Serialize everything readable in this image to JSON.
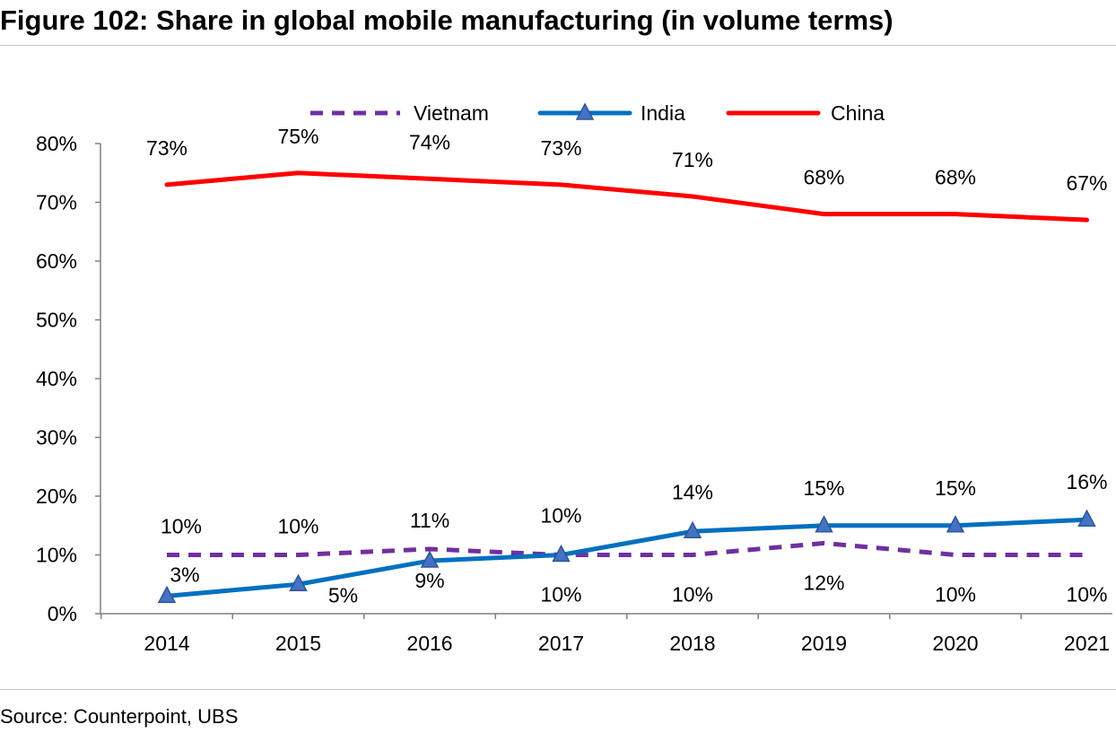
{
  "title": "Figure 102: Share in global mobile manufacturing (in volume terms)",
  "source": "Source: Counterpoint, UBS",
  "chart_data": {
    "type": "line",
    "categories": [
      "2014",
      "2015",
      "2016",
      "2017",
      "2018",
      "2019",
      "2020",
      "2021"
    ],
    "ylim": [
      0,
      80
    ],
    "yticks": [
      "0%",
      "10%",
      "20%",
      "30%",
      "40%",
      "50%",
      "60%",
      "70%",
      "80%"
    ],
    "grid": false,
    "legend_position": "top",
    "series": [
      {
        "name": "Vietnam",
        "color": "#7030A0",
        "style": "dashed",
        "marker": "none",
        "values": [
          10,
          10,
          11,
          10,
          10,
          12,
          10,
          10
        ],
        "labels": [
          "10%",
          "10%",
          "11%",
          "10%",
          "10%",
          "12%",
          "10%",
          "10%"
        ]
      },
      {
        "name": "India",
        "color": "#0070C0",
        "style": "solid",
        "marker": "triangle",
        "values": [
          3,
          5,
          9,
          10,
          14,
          15,
          15,
          16
        ],
        "labels": [
          "3%",
          "5%",
          "9%",
          "10%",
          "14%",
          "15%",
          "15%",
          "16%"
        ]
      },
      {
        "name": "China",
        "color": "#FF0000",
        "style": "solid",
        "marker": "none",
        "values": [
          73,
          75,
          74,
          73,
          71,
          68,
          68,
          67
        ],
        "labels": [
          "73%",
          "75%",
          "74%",
          "73%",
          "71%",
          "68%",
          "68%",
          "67%"
        ]
      }
    ]
  }
}
